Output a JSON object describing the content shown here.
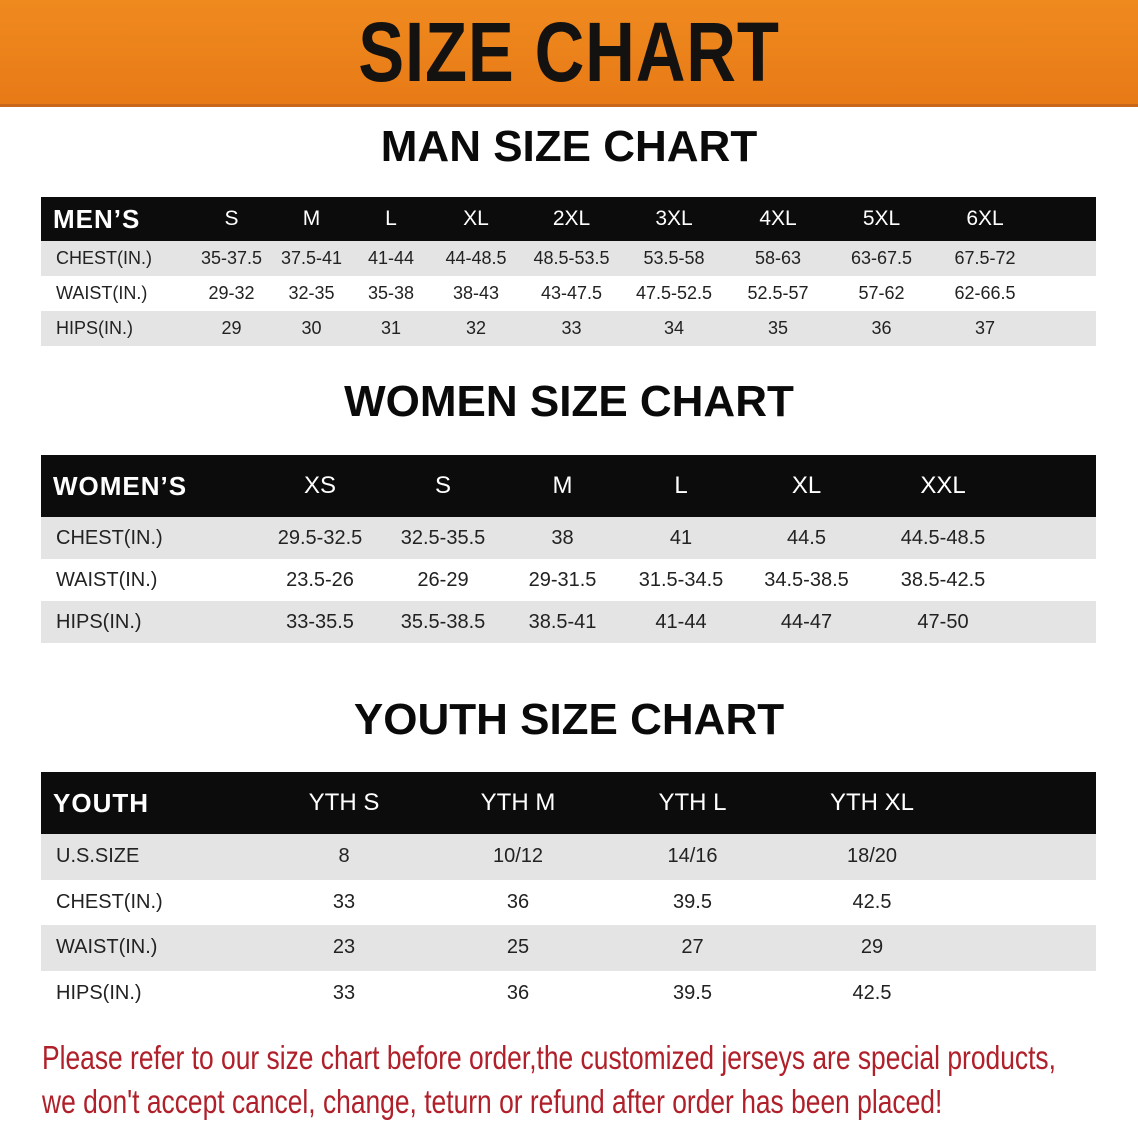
{
  "banner_title": "SIZE CHART",
  "colors": {
    "banner": "#e87a16",
    "header_row": "#0c0c0c",
    "stripe": "#e4e4e4",
    "notice": "#b0202a"
  },
  "men": {
    "heading": "MAN SIZE CHART",
    "columns": [
      "MEN’S",
      "S",
      "M",
      "L",
      "XL",
      "2XL",
      "3XL",
      "4XL",
      "5XL",
      "6XL",
      ""
    ],
    "rows": [
      [
        "CHEST(IN.)",
        "35-37.5",
        "37.5-41",
        "41-44",
        "44-48.5",
        "48.5-53.5",
        "53.5-58",
        "58-63",
        "63-67.5",
        "67.5-72",
        ""
      ],
      [
        "WAIST(IN.)",
        "29-32",
        "32-35",
        "35-38",
        "38-43",
        "43-47.5",
        "47.5-52.5",
        "52.5-57",
        "57-62",
        "62-66.5",
        ""
      ],
      [
        "HIPS(IN.)",
        "29",
        "30",
        "31",
        "32",
        "33",
        "34",
        "35",
        "36",
        "37",
        ""
      ]
    ]
  },
  "women": {
    "heading": "WOMEN SIZE CHART",
    "columns": [
      "WOMEN’S",
      "XS",
      "S",
      "M",
      "L",
      "XL",
      "XXL",
      ""
    ],
    "rows": [
      [
        "CHEST(IN.)",
        "29.5-32.5",
        "32.5-35.5",
        "38",
        "41",
        "44.5",
        "44.5-48.5",
        ""
      ],
      [
        "WAIST(IN.)",
        "23.5-26",
        "26-29",
        "29-31.5",
        "31.5-34.5",
        "34.5-38.5",
        "38.5-42.5",
        ""
      ],
      [
        "HIPS(IN.)",
        "33-35.5",
        "35.5-38.5",
        "38.5-41",
        "41-44",
        "44-47",
        "47-50",
        ""
      ]
    ]
  },
  "youth": {
    "heading": "YOUTH SIZE CHART",
    "columns": [
      "YOUTH",
      "YTH S",
      "YTH M",
      "YTH L",
      "YTH XL",
      ""
    ],
    "rows": [
      [
        "U.S.SIZE",
        "8",
        "10/12",
        "14/16",
        "18/20",
        ""
      ],
      [
        "CHEST(IN.)",
        "33",
        "36",
        "39.5",
        "42.5",
        ""
      ],
      [
        "WAIST(IN.)",
        "23",
        "25",
        "27",
        "29",
        ""
      ],
      [
        "HIPS(IN.)",
        "33",
        "36",
        "39.5",
        "42.5",
        ""
      ]
    ]
  },
  "notice": {
    "line1": "Please refer to our size chart before order,the customized jerseys are special products,",
    "line2": "we don't accept cancel, change, teturn or refund after order has been placed!"
  }
}
